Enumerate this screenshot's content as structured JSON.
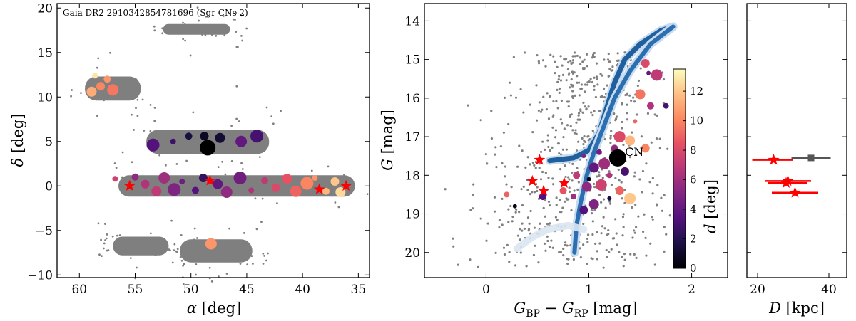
{
  "chart_data": [
    {
      "type": "scatter",
      "panel": "sky",
      "annotation": "Gaia DR2 2910342854781696 (Sgr CNs 2)",
      "xlabel_sym": "α",
      "xlabel_unit": "[deg]",
      "ylabel_sym": "δ",
      "ylabel_unit": "[deg]",
      "xlim": [
        62,
        34
      ],
      "ylim": [
        -10.3,
        20.5
      ],
      "xticks": [
        60,
        55,
        50,
        45,
        40,
        35
      ],
      "yticks": [
        -10,
        -5,
        0,
        5,
        10,
        15,
        20
      ],
      "field_regions": [
        {
          "x0": 52.5,
          "x1": 46.5,
          "y0": 17.0,
          "y1": 18.2
        },
        {
          "x0": 59.5,
          "x1": 54.5,
          "y0": 9.6,
          "y1": 12.3
        },
        {
          "x0": 54.0,
          "x1": 43.0,
          "y0": 3.6,
          "y1": 6.3
        },
        {
          "x0": 56.5,
          "x1": 35.3,
          "y0": -1.2,
          "y1": 1.2
        },
        {
          "x0": 57.0,
          "x1": 52.0,
          "y0": -7.8,
          "y1": -5.7
        },
        {
          "x0": 51.0,
          "x1": 44.5,
          "y0": -8.6,
          "y1": -6.0
        }
      ],
      "central_object": {
        "ra": 48.5,
        "dec": 4.3
      },
      "stars_ra_dec": [
        [
          55.5,
          0.0
        ],
        [
          48.3,
          0.6
        ],
        [
          38.5,
          -0.4
        ],
        [
          36.1,
          0.0
        ]
      ],
      "members": [
        {
          "ra": 58.6,
          "dec": 12.4,
          "d": 12.8
        },
        {
          "ra": 57.5,
          "dec": 12.0,
          "d": 10.5
        },
        {
          "ra": 58.1,
          "dec": 11.2,
          "d": 10.0
        },
        {
          "ra": 58.9,
          "dec": 10.6,
          "d": 11.2
        },
        {
          "ra": 57.0,
          "dec": 10.8,
          "d": 9.6
        },
        {
          "ra": 53.4,
          "dec": 4.6,
          "d": 3.5
        },
        {
          "ra": 51.6,
          "dec": 5.0,
          "d": 2.8
        },
        {
          "ra": 50.2,
          "dec": 5.6,
          "d": 1.5
        },
        {
          "ra": 48.8,
          "dec": 5.6,
          "d": 0.8
        },
        {
          "ra": 47.4,
          "dec": 5.4,
          "d": 1.2
        },
        {
          "ra": 45.5,
          "dec": 5.0,
          "d": 4.0
        },
        {
          "ra": 44.1,
          "dec": 5.6,
          "d": 3.0
        },
        {
          "ra": 56.8,
          "dec": 0.8,
          "d": 7.5
        },
        {
          "ra": 55.0,
          "dec": 1.0,
          "d": 5.5
        },
        {
          "ra": 54.1,
          "dec": 0.2,
          "d": 6.5
        },
        {
          "ra": 53.1,
          "dec": -0.6,
          "d": 7.0
        },
        {
          "ra": 52.4,
          "dec": 0.9,
          "d": 6.0
        },
        {
          "ra": 51.5,
          "dec": -0.4,
          "d": 5.0
        },
        {
          "ra": 50.8,
          "dec": 0.5,
          "d": 4.5
        },
        {
          "ra": 49.6,
          "dec": -0.5,
          "d": 3.5
        },
        {
          "ra": 48.9,
          "dec": 0.9,
          "d": 2.5
        },
        {
          "ra": 47.6,
          "dec": 0.2,
          "d": 4.0
        },
        {
          "ra": 46.8,
          "dec": -0.7,
          "d": 5.5
        },
        {
          "ra": 45.6,
          "dec": 0.9,
          "d": 4.5
        },
        {
          "ra": 44.6,
          "dec": -0.5,
          "d": 6.5
        },
        {
          "ra": 43.4,
          "dec": 0.6,
          "d": 7.0
        },
        {
          "ra": 42.4,
          "dec": -0.2,
          "d": 8.0
        },
        {
          "ra": 41.4,
          "dec": 0.8,
          "d": 8.5
        },
        {
          "ra": 40.6,
          "dec": -0.6,
          "d": 9.0
        },
        {
          "ra": 39.6,
          "dec": 0.3,
          "d": 10.0
        },
        {
          "ra": 38.9,
          "dec": 0.9,
          "d": 10.5
        },
        {
          "ra": 37.9,
          "dec": -0.6,
          "d": 11.5
        },
        {
          "ra": 37.1,
          "dec": 0.5,
          "d": 12.0
        },
        {
          "ra": 36.6,
          "dec": -0.7,
          "d": 12.5
        },
        {
          "ra": 48.2,
          "dec": -6.5,
          "d": 10.5
        }
      ]
    },
    {
      "type": "scatter",
      "panel": "cmd",
      "xlabel_main": "G",
      "xlabel_sub1": "BP",
      "xlabel_sub2": "RP",
      "xlabel_unit": "[mag]",
      "ylabel_sym": "G",
      "ylabel_unit": "[mag]",
      "xlim": [
        -0.6,
        2.35
      ],
      "ylim": [
        20.65,
        13.55
      ],
      "xticks": [
        0,
        1,
        2
      ],
      "yticks": [
        14,
        15,
        16,
        17,
        18,
        19,
        20
      ],
      "cn_label": "CN",
      "cn_point": {
        "color": 1.28,
        "g": 17.55
      },
      "isochrone": [
        [
          0.62,
          17.62
        ],
        [
          0.85,
          17.55
        ],
        [
          1.0,
          17.35
        ],
        [
          1.1,
          16.9
        ],
        [
          1.18,
          16.2
        ],
        [
          1.25,
          15.6
        ],
        [
          1.35,
          15.0
        ],
        [
          1.5,
          14.6
        ],
        [
          1.7,
          14.25
        ],
        [
          1.82,
          14.15
        ]
      ],
      "rgb_branch": [
        [
          1.82,
          14.15
        ],
        [
          1.6,
          14.6
        ],
        [
          1.4,
          15.3
        ],
        [
          1.25,
          16.0
        ],
        [
          1.15,
          16.7
        ],
        [
          1.05,
          17.4
        ],
        [
          0.98,
          18.0
        ],
        [
          0.92,
          18.7
        ],
        [
          0.88,
          19.3
        ],
        [
          0.86,
          20.0
        ]
      ],
      "hb_branch": [
        [
          0.3,
          19.9
        ],
        [
          0.45,
          19.6
        ],
        [
          0.6,
          19.4
        ],
        [
          0.8,
          19.3
        ],
        [
          0.95,
          19.4
        ]
      ],
      "stars_color_mag": [
        [
          0.52,
          17.6
        ],
        [
          0.45,
          18.15
        ],
        [
          0.76,
          18.2
        ],
        [
          0.56,
          18.4
        ]
      ],
      "colorbar": {
        "label": "d",
        "unit": "[deg]",
        "min": 0,
        "max": 13.5,
        "ticks": [
          0,
          2,
          4,
          6,
          8,
          10,
          12
        ]
      },
      "members": [
        {
          "bp_rp": 1.58,
          "g": 15.35,
          "d": 4.0
        },
        {
          "bp_rp": 1.66,
          "g": 15.4,
          "d": 7.0
        },
        {
          "bp_rp": 1.5,
          "g": 15.9,
          "d": 9.5
        },
        {
          "bp_rp": 1.55,
          "g": 15.1,
          "d": 8.0
        },
        {
          "bp_rp": 1.6,
          "g": 16.2,
          "d": 6.5
        },
        {
          "bp_rp": 1.75,
          "g": 16.2,
          "d": 3.0
        },
        {
          "bp_rp": 1.45,
          "g": 16.6,
          "d": 9.0
        },
        {
          "bp_rp": 1.3,
          "g": 17.0,
          "d": 8.0
        },
        {
          "bp_rp": 1.4,
          "g": 17.1,
          "d": 11.5
        },
        {
          "bp_rp": 1.55,
          "g": 17.3,
          "d": 10.0
        },
        {
          "bp_rp": 1.25,
          "g": 17.3,
          "d": 5.5
        },
        {
          "bp_rp": 1.1,
          "g": 17.4,
          "d": 4.5
        },
        {
          "bp_rp": 0.95,
          "g": 17.5,
          "d": 5.0
        },
        {
          "bp_rp": 1.15,
          "g": 17.7,
          "d": 6.0
        },
        {
          "bp_rp": 1.05,
          "g": 17.8,
          "d": 4.0
        },
        {
          "bp_rp": 1.35,
          "g": 17.9,
          "d": 3.0
        },
        {
          "bp_rp": 0.88,
          "g": 18.0,
          "d": 7.0
        },
        {
          "bp_rp": 1.2,
          "g": 18.0,
          "d": 6.5
        },
        {
          "bp_rp": 1.0,
          "g": 18.1,
          "d": 0.5
        },
        {
          "bp_rp": 1.12,
          "g": 18.25,
          "d": 7.5
        },
        {
          "bp_rp": 0.98,
          "g": 18.3,
          "d": 5.5
        },
        {
          "bp_rp": 1.3,
          "g": 18.4,
          "d": 9.0
        },
        {
          "bp_rp": 0.75,
          "g": 18.4,
          "d": 8.5
        },
        {
          "bp_rp": 0.85,
          "g": 18.55,
          "d": 6.0
        },
        {
          "bp_rp": 1.2,
          "g": 18.6,
          "d": 1.5
        },
        {
          "bp_rp": 1.4,
          "g": 18.6,
          "d": 12.0
        },
        {
          "bp_rp": 1.05,
          "g": 18.75,
          "d": 5.0
        },
        {
          "bp_rp": 0.95,
          "g": 18.9,
          "d": 3.5
        },
        {
          "bp_rp": 0.55,
          "g": 18.55,
          "d": 3.5
        },
        {
          "bp_rp": 0.2,
          "g": 18.5,
          "d": 9.0
        },
        {
          "bp_rp": 0.28,
          "g": 18.8,
          "d": 0.5
        }
      ]
    },
    {
      "type": "errorbar",
      "panel": "distance",
      "xlabel_sym": "D",
      "xlabel_unit": "[kpc]",
      "xlim": [
        17,
        45
      ],
      "ylim": [
        20.65,
        13.55
      ],
      "xticks": [
        20,
        40
      ],
      "cn": {
        "d_kpc": 35,
        "err": [
          29.5,
          40.5
        ],
        "g": 17.55
      },
      "stars": [
        {
          "d_kpc": 24.5,
          "err": [
            18.5,
            30
          ],
          "g": 17.6
        },
        {
          "d_kpc": 28.5,
          "err": [
            22,
            35
          ],
          "g": 18.15
        },
        {
          "d_kpc": 28.0,
          "err": [
            23,
            34
          ],
          "g": 18.2
        },
        {
          "d_kpc": 30.5,
          "err": [
            24,
            37
          ],
          "g": 18.45
        }
      ]
    }
  ]
}
